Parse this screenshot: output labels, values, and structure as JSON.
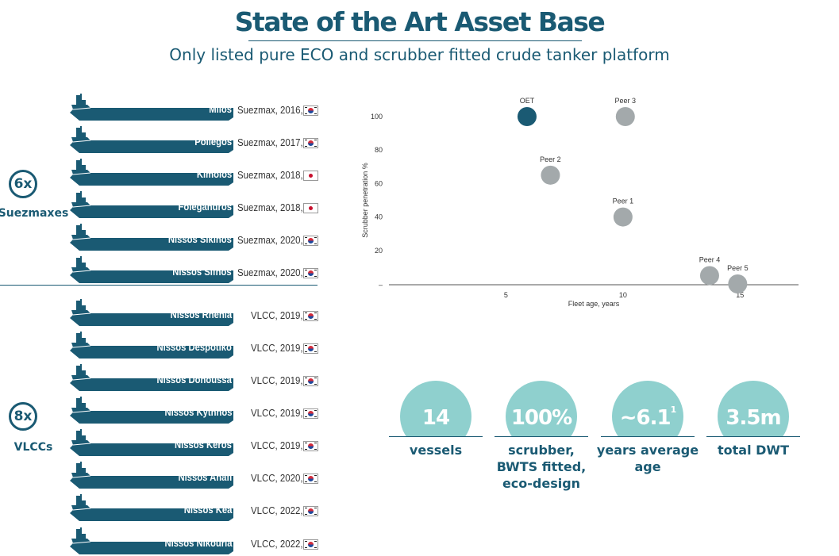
{
  "title": "State of the Art Asset Base",
  "subtitle": "Only listed pure ECO and scrubber fitted crude tanker platform",
  "groups": [
    {
      "count": "6x",
      "label": "Suezmaxes"
    },
    {
      "count": "8x",
      "label": "VLCCs"
    }
  ],
  "ships": [
    {
      "name": "Milos",
      "info": "Suezmax, 2016,",
      "flag": "kr"
    },
    {
      "name": "Poliegos",
      "info": "Suezmax, 2017,",
      "flag": "kr"
    },
    {
      "name": "Kimolos",
      "info": "Suezmax, 2018,",
      "flag": "jp"
    },
    {
      "name": "Folegandros",
      "info": "Suezmax, 2018,",
      "flag": "jp"
    },
    {
      "name": "Nissos Sikinos",
      "info": "Suezmax, 2020,",
      "flag": "kr"
    },
    {
      "name": "Nissos Sifnos",
      "info": "Suezmax, 2020,",
      "flag": "kr"
    },
    {
      "name": "Nissos Rhenia",
      "info": "VLCC, 2019,",
      "flag": "kr"
    },
    {
      "name": "Nissos Despotiko",
      "info": "VLCC, 2019,",
      "flag": "kr"
    },
    {
      "name": "Nissos Donoussa",
      "info": "VLCC, 2019,",
      "flag": "kr"
    },
    {
      "name": "Nissos Kythnos",
      "info": "VLCC, 2019,",
      "flag": "kr"
    },
    {
      "name": "Nissos Keros",
      "info": "VLCC, 2019,",
      "flag": "kr"
    },
    {
      "name": "Nissos Anafi",
      "info": "VLCC, 2020,",
      "flag": "kr"
    },
    {
      "name": "Nissos Kea",
      "info": "VLCC, 2022,",
      "flag": "kr"
    },
    {
      "name": "Nissos Nikouria",
      "info": "VLCC, 2022,",
      "flag": "kr"
    }
  ],
  "stats": [
    {
      "value": "14",
      "sup": "",
      "label": "vessels"
    },
    {
      "value": "100%",
      "sup": "",
      "label": "scrubber, BWTS fitted, eco-design"
    },
    {
      "value": "~6.1",
      "sup": "1",
      "label": "years average age"
    },
    {
      "value": "3.5m",
      "sup": "",
      "label": "total DWT"
    }
  ],
  "colors": {
    "primary": "#1a5a73",
    "peer": "#a3a9ab",
    "stat_circle": "#8fd0ce"
  },
  "chart_data": {
    "type": "scatter",
    "title": "",
    "xlabel": "Fleet age, years",
    "ylabel": "Scrubber penetration %",
    "xlim": [
      0,
      17.5
    ],
    "ylim": [
      0,
      100
    ],
    "xticks": [
      5,
      10,
      15
    ],
    "yticks": [
      20,
      40,
      60,
      80,
      100
    ],
    "ytick_zero_label": "–",
    "grid": false,
    "points": [
      {
        "label": "OET",
        "x": 5.9,
        "y": 100,
        "highlight": true
      },
      {
        "label": "Peer 3",
        "x": 10.1,
        "y": 100,
        "highlight": false
      },
      {
        "label": "Peer 2",
        "x": 6.9,
        "y": 65,
        "highlight": false
      },
      {
        "label": "Peer 1",
        "x": 10.0,
        "y": 40,
        "highlight": false
      },
      {
        "label": "Peer 4",
        "x": 13.7,
        "y": 5,
        "highlight": false
      },
      {
        "label": "Peer 5",
        "x": 14.9,
        "y": 0,
        "highlight": false
      }
    ]
  }
}
